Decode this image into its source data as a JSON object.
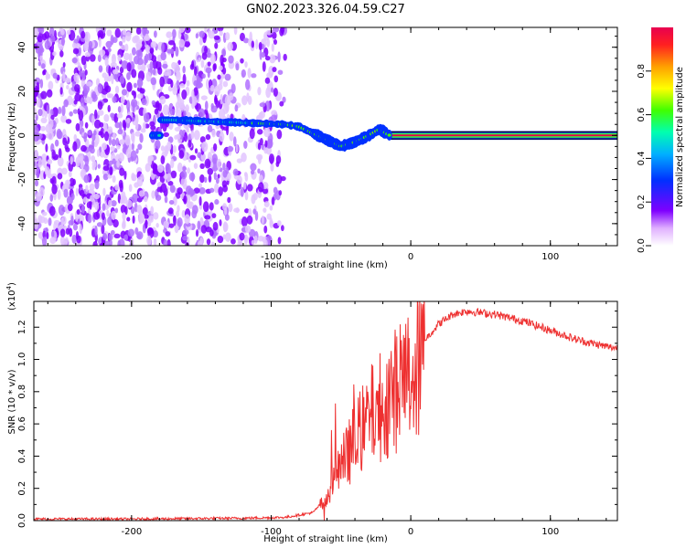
{
  "title": "GN02.2023.326.04.59.C27",
  "colors": {
    "axis": "#000000",
    "snr_line": "#ee3030",
    "dot": "#7f00ff",
    "colormap": [
      "#e80050",
      "#ff2020",
      "#ffa000",
      "#ffff00",
      "#40ff00",
      "#00ffb0",
      "#00b0ff",
      "#0030ff",
      "#7f00ff",
      "#ffffff"
    ]
  },
  "chart_data": [
    {
      "type": "heatmap",
      "xlabel": "Height of straight line (km)",
      "ylabel": "Frequency (Hz)",
      "xlim": [
        -270,
        148
      ],
      "ylim": [
        -50,
        49
      ],
      "x_ticks": [
        -200,
        -100,
        0,
        100
      ],
      "y_ticks": [
        -40,
        -20,
        0,
        20,
        40
      ],
      "colorbar": {
        "label": "Normalized spectral amplitude",
        "ticks": [
          "0.0",
          "0.2",
          "0.4",
          "0.6",
          "0.8"
        ],
        "range": [
          0,
          1
        ]
      },
      "ridge": [
        {
          "x": -180,
          "y": 7
        },
        {
          "x": -170,
          "y": 7
        },
        {
          "x": -150,
          "y": 6.5
        },
        {
          "x": -130,
          "y": 6
        },
        {
          "x": -110,
          "y": 5.5
        },
        {
          "x": -90,
          "y": 5
        },
        {
          "x": -80,
          "y": 4
        },
        {
          "x": -70,
          "y": 1
        },
        {
          "x": -60,
          "y": -2
        },
        {
          "x": -50,
          "y": -5
        },
        {
          "x": -40,
          "y": -3
        },
        {
          "x": -30,
          "y": 0
        },
        {
          "x": -22,
          "y": 3
        },
        {
          "x": -18,
          "y": 1
        },
        {
          "x": -15,
          "y": 0
        },
        {
          "x": 148,
          "y": 0
        }
      ]
    },
    {
      "type": "line",
      "xlabel": "Height of straight line (km)",
      "ylabel": "SNR (10 * v/v)",
      "scale_label": "(x10",
      "scale_exp": "4",
      "scale_close": ")",
      "xlim": [
        -270,
        148
      ],
      "ylim": [
        0,
        1.36
      ],
      "x_ticks": [
        -200,
        -100,
        0,
        100
      ],
      "y_ticks": [
        "0.0",
        "0.2",
        "0.4",
        "0.6",
        "0.8",
        "1.0",
        "1.2"
      ],
      "series": [
        {
          "envelope": [
            [
              -270,
              0.01
            ],
            [
              -200,
              0.01
            ],
            [
              -120,
              0.015
            ],
            [
              -90,
              0.02
            ],
            [
              -70,
              0.05
            ],
            [
              -60,
              0.15
            ],
            [
              -55,
              0.3
            ],
            [
              -50,
              0.38
            ],
            [
              -45,
              0.45
            ],
            [
              -40,
              0.55
            ],
            [
              -35,
              0.62
            ],
            [
              -30,
              0.7
            ],
            [
              -25,
              0.75
            ],
            [
              -20,
              0.8
            ],
            [
              -15,
              0.85
            ],
            [
              -10,
              0.9
            ],
            [
              -5,
              0.95
            ],
            [
              0,
              1.0
            ],
            [
              10,
              1.12
            ],
            [
              20,
              1.22
            ],
            [
              30,
              1.28
            ],
            [
              40,
              1.3
            ],
            [
              60,
              1.28
            ],
            [
              80,
              1.24
            ],
            [
              100,
              1.18
            ],
            [
              120,
              1.12
            ],
            [
              140,
              1.08
            ],
            [
              148,
              1.07
            ]
          ]
        }
      ]
    }
  ]
}
